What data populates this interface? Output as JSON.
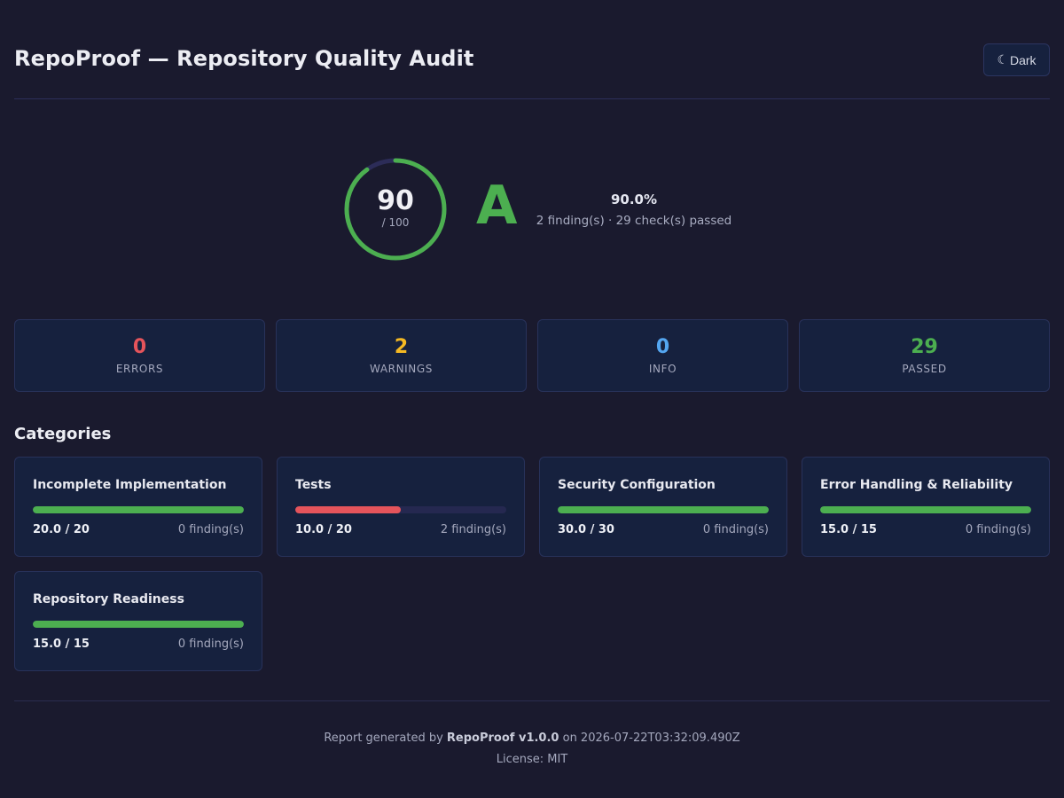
{
  "header": {
    "title": "RepoProof — Repository Quality Audit",
    "theme_toggle_icon": "☾",
    "theme_toggle_label": "Dark"
  },
  "score": {
    "value": 90,
    "max_label": "/ 100",
    "fraction": 0.9,
    "grade": "A",
    "percent_label": "90.0%",
    "summary": "2 finding(s) · 29 check(s) passed",
    "ring_color": "#4caf50",
    "ring_track_color": "#2c2c58"
  },
  "stats": [
    {
      "value": "0",
      "label": "ERRORS",
      "color": "#e5545b"
    },
    {
      "value": "2",
      "label": "WARNINGS",
      "color": "#f5b922"
    },
    {
      "value": "0",
      "label": "INFO",
      "color": "#54a6f0"
    },
    {
      "value": "29",
      "label": "PASSED",
      "color": "#4caf50"
    }
  ],
  "categories_heading": "Categories",
  "categories": [
    {
      "name": "Incomplete Implementation",
      "score_label": "20.0 / 20",
      "findings": "0 finding(s)",
      "fraction": 1.0,
      "bar_color": "#4caf50"
    },
    {
      "name": "Tests",
      "score_label": "10.0 / 20",
      "findings": "2 finding(s)",
      "fraction": 0.5,
      "bar_color": "#e5545b"
    },
    {
      "name": "Security Configuration",
      "score_label": "30.0 / 30",
      "findings": "0 finding(s)",
      "fraction": 1.0,
      "bar_color": "#4caf50"
    },
    {
      "name": "Error Handling & Reliability",
      "score_label": "15.0 / 15",
      "findings": "0 finding(s)",
      "fraction": 1.0,
      "bar_color": "#4caf50"
    },
    {
      "name": "Repository Readiness",
      "score_label": "15.0 / 15",
      "findings": "0 finding(s)",
      "fraction": 1.0,
      "bar_color": "#4caf50"
    }
  ],
  "footer": {
    "prefix": "Report generated by",
    "tool": "RepoProof v1.0.0",
    "suffix": "on 2026-07-22T03:32:09.490Z",
    "license": "License: MIT"
  }
}
